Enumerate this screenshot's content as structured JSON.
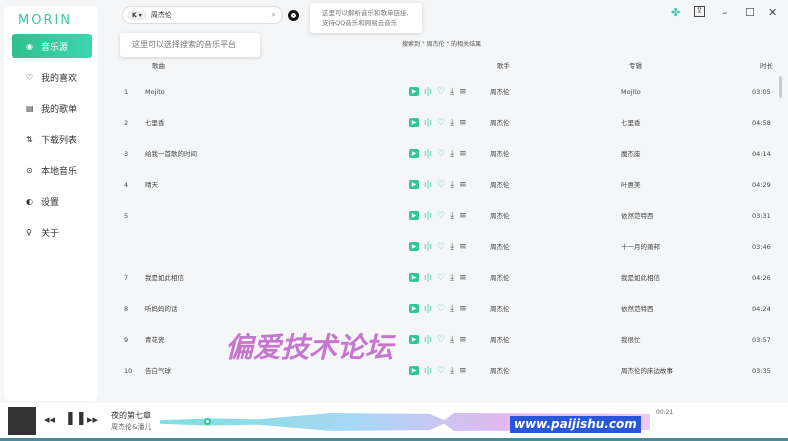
{
  "app": {
    "logo": "MORIN"
  },
  "sidebar": {
    "items": [
      {
        "label": "音乐源",
        "icon": "disc-icon",
        "active": true
      },
      {
        "label": "我的喜欢",
        "icon": "heart-icon"
      },
      {
        "label": "我的歌单",
        "icon": "playlist-icon"
      },
      {
        "label": "下载列表",
        "icon": "sort-icon"
      },
      {
        "label": "本地音乐",
        "icon": "play-circle-icon"
      },
      {
        "label": "设置",
        "icon": "toggle-icon"
      },
      {
        "label": "关于",
        "icon": "bulb-icon"
      }
    ]
  },
  "search": {
    "platform": "K",
    "query": "周杰伦"
  },
  "tips": {
    "platform": "这里可以选择搜索的音乐平台",
    "parse_line1": "这里可以解析音乐和歌单链接,",
    "parse_line2": "支持QQ音乐和网易云音乐"
  },
  "result_summary": "搜索到 \" 周杰伦 \" 的相关结果",
  "table": {
    "headers": {
      "song": "歌曲",
      "singer": "歌手",
      "album": "专辑",
      "duration": "时长"
    },
    "rows": [
      {
        "index": "1",
        "title": "Mojito",
        "singer": "周杰伦",
        "album": "Mojito",
        "duration": "03:05"
      },
      {
        "index": "2",
        "title": "七里香",
        "singer": "周杰伦",
        "album": "七里香",
        "duration": "04:58"
      },
      {
        "index": "3",
        "title": "给我一首歌的时间",
        "singer": "周杰伦",
        "album": "魔杰座",
        "duration": "04:14"
      },
      {
        "index": "4",
        "title": "晴天",
        "singer": "周杰伦",
        "album": "叶惠美",
        "duration": "04:29"
      },
      {
        "index": "5",
        "title": "",
        "singer": "周杰伦",
        "album": "依然范特西",
        "duration": "03:31"
      },
      {
        "index": "",
        "title": "",
        "singer": "周杰伦",
        "album": "十一月的萧邦",
        "duration": "03:46"
      },
      {
        "index": "7",
        "title": "我是如此相信",
        "singer": "周杰伦",
        "album": "我是如此相信",
        "duration": "04:26"
      },
      {
        "index": "8",
        "title": "听妈妈的话",
        "singer": "周杰伦",
        "album": "依然范特西",
        "duration": "04:24"
      },
      {
        "index": "9",
        "title": "青花瓷",
        "singer": "周杰伦",
        "album": "我很忙",
        "duration": "03:57"
      },
      {
        "index": "10",
        "title": "告白气球",
        "singer": "周杰伦",
        "album": "周杰伦的床边故事",
        "duration": "03:35"
      }
    ]
  },
  "player": {
    "title": "夜的第七章",
    "artist": "周杰伦&潘儿",
    "time": "00:21",
    "progress_fraction": 0.05
  },
  "watermark": {
    "text": "偏爱技术论坛",
    "url": "www.paijishu.com"
  },
  "colors": {
    "accent": "#3cc8a8"
  }
}
